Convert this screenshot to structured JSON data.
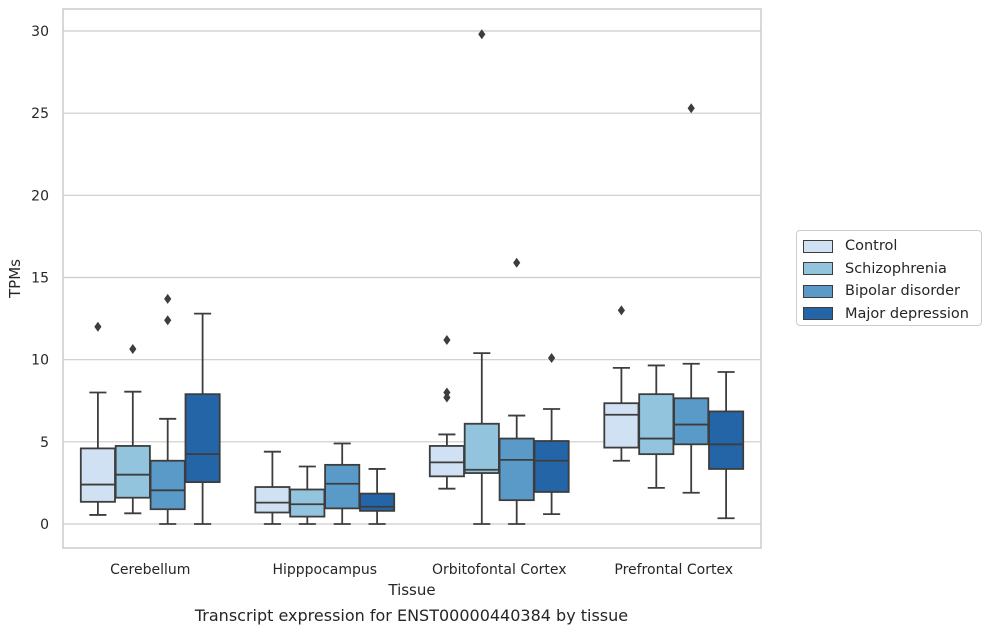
{
  "caption": "Transcript expression for ENST00000440384 by tissue",
  "chart_data": {
    "type": "box",
    "xlabel": "Tissue",
    "ylabel": "TPMs",
    "ylim": [
      -1.5,
      31.3
    ],
    "yticks": [
      0,
      5,
      10,
      15,
      20,
      25,
      30
    ],
    "grid": "horizontal",
    "legend_placement": "right",
    "categories": [
      "Cerebellum",
      "Hipppocampus",
      "Orbitofontal Cortex",
      "Prefrontal Cortex"
    ],
    "series": [
      {
        "name": "Control",
        "color": "#cfe1f2",
        "boxes": [
          {
            "min": 0.55,
            "q1": 1.35,
            "median": 2.4,
            "q3": 4.6,
            "max": 8.0,
            "outliers": [
              12.0
            ]
          },
          {
            "min": 0.0,
            "q1": 0.7,
            "median": 1.3,
            "q3": 2.25,
            "max": 4.4,
            "outliers": []
          },
          {
            "min": 2.15,
            "q1": 2.9,
            "median": 3.75,
            "q3": 4.75,
            "max": 5.45,
            "outliers": [
              7.7,
              8.0,
              11.2
            ]
          },
          {
            "min": 3.85,
            "q1": 4.65,
            "median": 6.65,
            "q3": 7.35,
            "max": 9.5,
            "outliers": [
              13.0
            ]
          }
        ]
      },
      {
        "name": "Schizophrenia",
        "color": "#93c4de",
        "boxes": [
          {
            "min": 0.65,
            "q1": 1.6,
            "median": 3.0,
            "q3": 4.75,
            "max": 8.05,
            "outliers": [
              10.65
            ]
          },
          {
            "min": 0.0,
            "q1": 0.45,
            "median": 1.2,
            "q3": 2.1,
            "max": 3.5,
            "outliers": []
          },
          {
            "min": 0.0,
            "q1": 3.1,
            "median": 3.3,
            "q3": 6.1,
            "max": 10.4,
            "outliers": [
              29.8
            ]
          },
          {
            "min": 2.2,
            "q1": 4.25,
            "median": 5.2,
            "q3": 7.9,
            "max": 9.65,
            "outliers": []
          }
        ]
      },
      {
        "name": "Bipolar disorder",
        "color": "#5a9ac9",
        "boxes": [
          {
            "min": 0.0,
            "q1": 0.9,
            "median": 2.05,
            "q3": 3.85,
            "max": 6.4,
            "outliers": [
              12.4,
              13.7
            ]
          },
          {
            "min": 0.0,
            "q1": 0.95,
            "median": 2.45,
            "q3": 3.6,
            "max": 4.9,
            "outliers": []
          },
          {
            "min": 0.0,
            "q1": 1.45,
            "median": 3.9,
            "q3": 5.2,
            "max": 6.6,
            "outliers": [
              15.9
            ]
          },
          {
            "min": 1.9,
            "q1": 4.85,
            "median": 6.05,
            "q3": 7.65,
            "max": 9.75,
            "outliers": [
              25.3
            ]
          }
        ]
      },
      {
        "name": "Major depression",
        "color": "#2465a7",
        "boxes": [
          {
            "min": 0.0,
            "q1": 2.55,
            "median": 4.25,
            "q3": 7.9,
            "max": 12.8,
            "outliers": []
          },
          {
            "min": 0.0,
            "q1": 0.8,
            "median": 1.05,
            "q3": 1.85,
            "max": 3.35,
            "outliers": []
          },
          {
            "min": 0.6,
            "q1": 1.95,
            "median": 3.85,
            "q3": 5.05,
            "max": 7.0,
            "outliers": [
              10.1
            ]
          },
          {
            "min": 0.35,
            "q1": 3.35,
            "median": 4.85,
            "q3": 6.85,
            "max": 9.25,
            "outliers": []
          }
        ]
      }
    ]
  }
}
